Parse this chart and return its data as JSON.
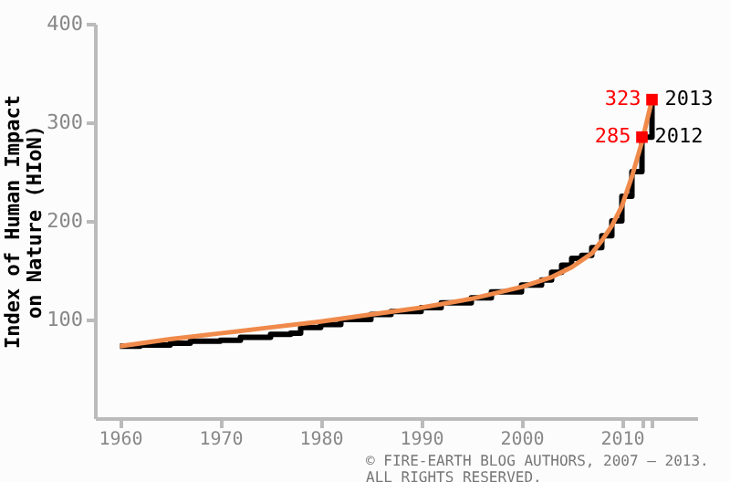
{
  "chart_data": {
    "type": "line",
    "ylabel": "Index of Human Impact\non Nature (HIoN)",
    "xlim": [
      1957.5,
      2017.5
    ],
    "xticks": [
      1960,
      1970,
      1980,
      1990,
      2000,
      2010,
      {
        "value": 2012,
        "label": null
      },
      {
        "value": 2013,
        "label": null
      }
    ],
    "ylim": [
      0,
      400
    ],
    "yticks": [
      100,
      200,
      300,
      400
    ],
    "grid": false,
    "legend": false,
    "marker": "none",
    "series": [
      {
        "type": "step",
        "color": "#000000",
        "x": [
          1960,
          1962,
          1965,
          1967,
          1970,
          1972,
          1975,
          1977,
          1978,
          1980,
          1982,
          1985,
          1987,
          1990,
          1992,
          1995,
          1997,
          2000,
          2002,
          2003,
          2004,
          2005,
          2006,
          2007,
          2008,
          2009,
          2010,
          2011,
          2012,
          2013
        ],
        "values": [
          73,
          74,
          76,
          78,
          79,
          82,
          85,
          86,
          92,
          95,
          100,
          105,
          108,
          112,
          117,
          122,
          128,
          135,
          140,
          148,
          155,
          162,
          165,
          173,
          185,
          200,
          225,
          250,
          285,
          323
        ]
      },
      {
        "color": "#f08a4b",
        "x": [
          1960,
          1965,
          1970,
          1975,
          1980,
          1985,
          1990,
          1995,
          2000,
          2003,
          2005,
          2007,
          2008,
          2009,
          2010,
          2011,
          2012,
          2013
        ],
        "values": [
          73,
          80,
          86,
          92,
          98,
          105,
          112,
          121,
          133,
          143,
          153,
          167,
          180,
          195,
          215,
          245,
          280,
          323
        ]
      },
      {
        "type": "scatter",
        "marker": "square",
        "color": "#ff0000",
        "x": [
          2012,
          2013
        ],
        "values": [
          285,
          323
        ],
        "value_labels": [
          "285",
          "323"
        ]
      }
    ],
    "annotations": [
      {
        "text": "2012",
        "x": 2012,
        "y": 285
      },
      {
        "text": "2013",
        "x": 2013,
        "y": 323
      },
      "© FIRE-EARTH BLOG AUTHORS, 2007 – 2013.\nALL RIGHTS RESERVED."
    ]
  }
}
